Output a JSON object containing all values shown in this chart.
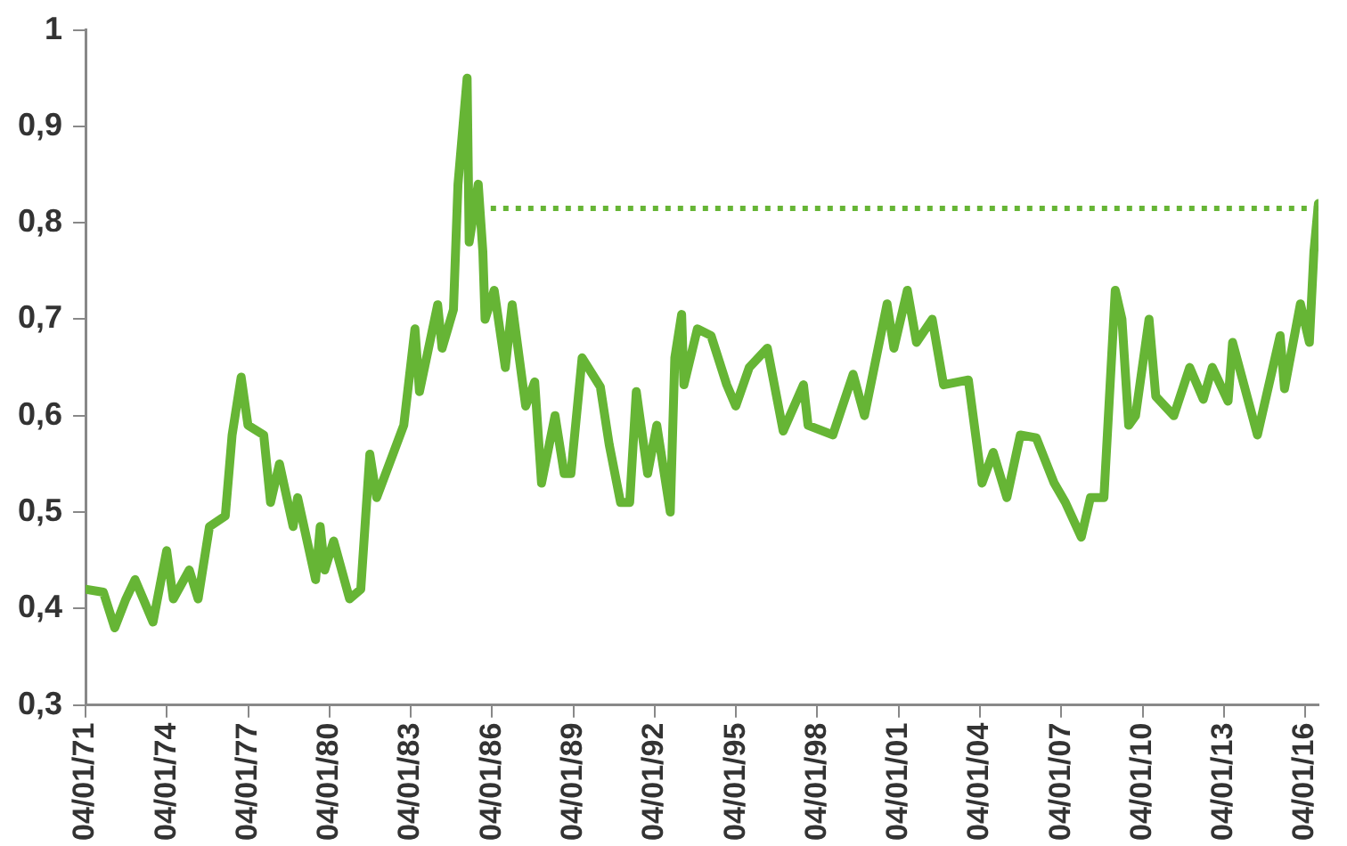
{
  "chart_data": {
    "type": "line",
    "marker": "none",
    "grid": false,
    "legend": false,
    "xlim": [
      "1971-01-04",
      "2016-07-01"
    ],
    "xticks": [
      {
        "value": "1971-01-04",
        "label": "04/01/71"
      },
      {
        "value": "1974-01-04",
        "label": "04/01/74"
      },
      {
        "value": "1977-01-04",
        "label": "04/01/77"
      },
      {
        "value": "1980-01-04",
        "label": "04/01/80"
      },
      {
        "value": "1983-01-04",
        "label": "04/01/83"
      },
      {
        "value": "1986-01-04",
        "label": "04/01/86"
      },
      {
        "value": "1989-01-04",
        "label": "04/01/89"
      },
      {
        "value": "1992-01-04",
        "label": "04/01/92"
      },
      {
        "value": "1995-01-04",
        "label": "04/01/95"
      },
      {
        "value": "1998-01-04",
        "label": "04/01/98"
      },
      {
        "value": "2001-01-04",
        "label": "04/01/01"
      },
      {
        "value": "2004-01-04",
        "label": "04/01/04"
      },
      {
        "value": "2007-01-04",
        "label": "04/01/07"
      },
      {
        "value": "2010-01-04",
        "label": "04/01/10"
      },
      {
        "value": "2013-01-04",
        "label": "04/01/13"
      },
      {
        "value": "2016-01-04",
        "label": "04/01/16"
      }
    ],
    "ylim": [
      0.3,
      1
    ],
    "yticks": [
      {
        "value": 0.3,
        "label": "0,3"
      },
      {
        "value": 0.4,
        "label": "0,4"
      },
      {
        "value": 0.5,
        "label": "0,5"
      },
      {
        "value": 0.6,
        "label": "0,6"
      },
      {
        "value": 0.7,
        "label": "0,7"
      },
      {
        "value": 0.8,
        "label": "0,8"
      },
      {
        "value": 0.9,
        "label": "0,9"
      },
      {
        "value": 1,
        "label": "1"
      }
    ],
    "series": [
      {
        "color": "#66b535",
        "x": [
          "1971-01-04",
          "1971-09",
          "1972-02",
          "1972-07",
          "1972-11",
          "1973-07",
          "1974-01",
          "1974-04",
          "1974-11",
          "1975-03",
          "1975-08",
          "1976-03",
          "1976-06",
          "1976-10",
          "1977-01",
          "1977-08",
          "1977-11",
          "1978-03",
          "1978-09",
          "1978-11",
          "1979-07",
          "1979-09",
          "1979-11",
          "1980-03",
          "1980-10",
          "1981-03",
          "1981-07",
          "1981-10",
          "1982-10",
          "1983-03",
          "1983-05",
          "1984-01",
          "1984-03",
          "1984-08",
          "1984-10",
          "1985-02",
          "1985-03",
          "1985-07",
          "1985-09",
          "1985-10",
          "1986-02",
          "1986-07",
          "1986-10",
          "1987-04",
          "1987-08",
          "1987-11",
          "1988-05",
          "1988-09",
          "1988-12",
          "1989-05",
          "1990-01",
          "1990-05",
          "1990-10",
          "1991-02",
          "1991-05",
          "1991-10",
          "1992-02",
          "1992-08",
          "1992-10",
          "1993-01",
          "1993-02",
          "1993-08",
          "1994-02",
          "1994-09",
          "1995-01",
          "1995-07",
          "1996-03",
          "1996-10",
          "1997-07",
          "1997-09",
          "1998-08",
          "1999-05",
          "1999-10",
          "2000-08",
          "2000-11",
          "2001-05",
          "2001-09",
          "2002-04",
          "2002-09",
          "2003-08",
          "2004-02",
          "2004-07",
          "2005-01",
          "2005-07",
          "2006-02",
          "2006-10",
          "2007-03",
          "2007-10",
          "2008-02",
          "2008-08",
          "2009-01",
          "2009-04",
          "2009-07",
          "2009-10",
          "2010-04",
          "2010-07",
          "2011-03",
          "2011-10",
          "2012-04",
          "2012-08",
          "2013-03",
          "2013-05",
          "2014-04",
          "2015-02",
          "2015-04",
          "2015-11",
          "2016-03",
          "2016-05",
          "2016-07"
        ],
        "values": [
          0.42,
          0.417,
          0.38,
          0.41,
          0.43,
          0.386,
          0.46,
          0.41,
          0.44,
          0.41,
          0.485,
          0.496,
          0.58,
          0.64,
          0.59,
          0.58,
          0.51,
          0.55,
          0.485,
          0.515,
          0.43,
          0.485,
          0.44,
          0.47,
          0.41,
          0.42,
          0.56,
          0.515,
          0.59,
          0.69,
          0.625,
          0.715,
          0.67,
          0.71,
          0.84,
          0.95,
          0.78,
          0.84,
          0.77,
          0.7,
          0.73,
          0.65,
          0.715,
          0.61,
          0.635,
          0.53,
          0.6,
          0.54,
          0.54,
          0.66,
          0.63,
          0.57,
          0.51,
          0.51,
          0.625,
          0.54,
          0.59,
          0.5,
          0.66,
          0.705,
          0.632,
          0.69,
          0.683,
          0.632,
          0.61,
          0.65,
          0.67,
          0.584,
          0.632,
          0.59,
          0.58,
          0.643,
          0.6,
          0.716,
          0.67,
          0.73,
          0.676,
          0.7,
          0.632,
          0.637,
          0.53,
          0.562,
          0.515,
          0.58,
          0.577,
          0.53,
          0.51,
          0.474,
          0.515,
          0.515,
          0.73,
          0.7,
          0.59,
          0.6,
          0.7,
          0.62,
          0.6,
          0.65,
          0.617,
          0.65,
          0.615,
          0.676,
          0.58,
          0.683,
          0.628,
          0.716,
          0.676,
          0.77,
          0.82
        ]
      },
      {
        "color": "#66b535",
        "line_style": "dotted",
        "x": [
          "1985-07",
          "2016-07-01"
        ],
        "values": [
          0.815,
          0.815
        ]
      }
    ]
  }
}
